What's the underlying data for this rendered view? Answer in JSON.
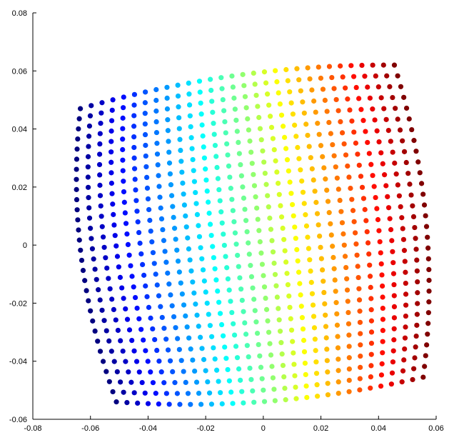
{
  "chart_data": {
    "type": "scatter",
    "title": "",
    "xlabel": "",
    "ylabel": "",
    "xlim": [
      -0.08,
      0.06
    ],
    "ylim": [
      -0.06,
      0.08
    ],
    "xticks": [
      -0.08,
      -0.06,
      -0.04,
      -0.02,
      0,
      0.02,
      0.04,
      0.06
    ],
    "yticks": [
      -0.06,
      -0.04,
      -0.02,
      0,
      0.02,
      0.04,
      0.06,
      0.08
    ],
    "xtick_labels": [
      "-0.08",
      "-0.06",
      "-0.04",
      "-0.02",
      "0",
      "0.02",
      "0.04",
      "0.06"
    ],
    "ytick_labels": [
      "-0.06",
      "-0.04",
      "-0.02",
      "0",
      "0.02",
      "0.04",
      "0.06",
      "0.08"
    ],
    "grid": false,
    "colormap": "jet",
    "point_grid": {
      "columns": 30,
      "rows": 30,
      "corners": {
        "top_left": [
          -0.0635,
          0.047
        ],
        "top_right": [
          0.0455,
          0.062
        ],
        "bottom_left": [
          -0.051,
          -0.054
        ],
        "bottom_right": [
          0.0555,
          -0.0455
        ]
      }
    }
  }
}
